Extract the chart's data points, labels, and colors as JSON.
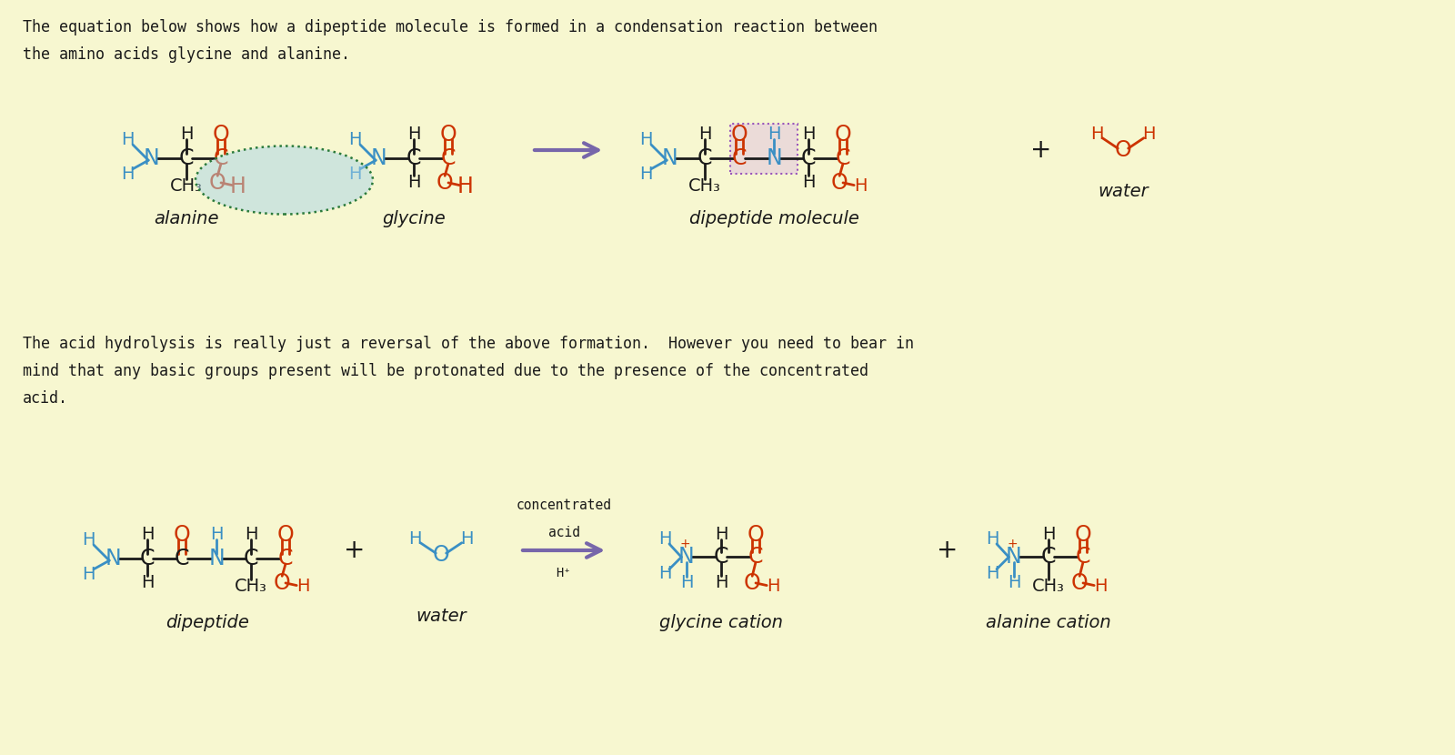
{
  "bg_color": "#f7f7d0",
  "title1": "The equation below shows how a dipeptide molecule is formed in a condensation reaction between",
  "title2": "the amino acids glycine and alanine.",
  "mid1": "The acid hydrolysis is really just a reversal of the above formation.  However you need to bear in",
  "mid2": "mind that any basic groups present will be protonated due to the presence of the concentrated",
  "mid3": "acid.",
  "black": "#1a1a1a",
  "blue": "#3a8fc4",
  "red": "#cc3300",
  "purple": "#7766aa",
  "teal": "#2a7a3a"
}
